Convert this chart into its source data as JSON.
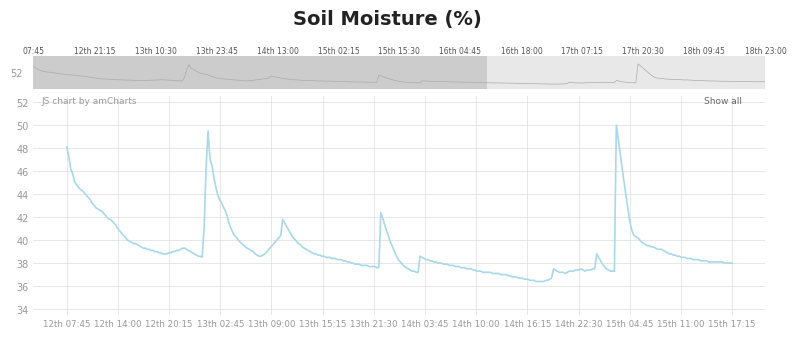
{
  "title": "Soil Moisture (%)",
  "title_fontsize": 14,
  "title_fontweight": "bold",
  "ylabel_values": [
    34,
    36,
    38,
    40,
    42,
    44,
    46,
    48,
    50,
    52
  ],
  "ylim": [
    33.5,
    52.5
  ],
  "bg_color": "#ffffff",
  "plot_bg_color": "#ffffff",
  "line_color": "#a8d8ea",
  "line_width": 1.2,
  "scrollbar_color": "#cccccc",
  "scrollbar_dark_color": "#888888",
  "x_tick_labels": [
    "12th 07:45",
    "12th 14:00",
    "12th 20:15",
    "13th 02:45",
    "13th 09:00",
    "13th 15:15",
    "13th 21:30",
    "14th 03:45",
    "14th 10:00",
    "14th 16:15",
    "14th 22:30",
    "15th 04:45",
    "15th 11:00",
    "15th 17:15"
  ],
  "top_scroll_labels": [
    "07:45",
    "12th 21:15",
    "13th 10:30",
    "13th 23:45",
    "14th 13:00",
    "15th 02:15",
    "15th 15:30",
    "16th 04:45",
    "16th 18:00",
    "17th 07:15",
    "17th 20:30",
    "18th 09:45",
    "18th 23:00"
  ],
  "watermark_text": "JS chart by amCharts",
  "show_all_text": "Show all",
  "grid_color": "#dddddd",
  "tick_color": "#999999",
  "data_y": [
    48.1,
    47.3,
    46.2,
    45.8,
    45.1,
    44.8,
    44.6,
    44.4,
    44.3,
    44.1,
    43.9,
    43.7,
    43.5,
    43.2,
    43.0,
    42.8,
    42.7,
    42.6,
    42.5,
    42.3,
    42.1,
    41.9,
    41.8,
    41.7,
    41.5,
    41.3,
    41.0,
    40.8,
    40.6,
    40.4,
    40.2,
    40.0,
    39.9,
    39.8,
    39.7,
    39.7,
    39.6,
    39.5,
    39.4,
    39.3,
    39.3,
    39.2,
    39.2,
    39.1,
    39.1,
    39.0,
    39.0,
    38.9,
    38.9,
    38.8,
    38.8,
    38.8,
    38.9,
    38.9,
    39.0,
    39.0,
    39.1,
    39.1,
    39.2,
    39.3,
    39.3,
    39.2,
    39.1,
    39.0,
    38.9,
    38.8,
    38.7,
    38.6,
    38.6,
    38.5,
    41.1,
    46.4,
    49.5,
    47.0,
    46.5,
    45.4,
    44.6,
    43.9,
    43.5,
    43.2,
    42.8,
    42.5,
    41.9,
    41.3,
    40.9,
    40.5,
    40.3,
    40.1,
    39.9,
    39.7,
    39.6,
    39.4,
    39.3,
    39.2,
    39.1,
    39.0,
    38.8,
    38.7,
    38.6,
    38.6,
    38.7,
    38.8,
    39.0,
    39.2,
    39.4,
    39.6,
    39.8,
    40.0,
    40.2,
    40.4,
    41.8,
    41.5,
    41.2,
    40.9,
    40.6,
    40.3,
    40.1,
    39.9,
    39.7,
    39.6,
    39.4,
    39.3,
    39.2,
    39.1,
    39.0,
    38.9,
    38.8,
    38.8,
    38.7,
    38.7,
    38.6,
    38.6,
    38.5,
    38.5,
    38.5,
    38.4,
    38.4,
    38.4,
    38.3,
    38.3,
    38.3,
    38.2,
    38.2,
    38.1,
    38.1,
    38.0,
    38.0,
    37.9,
    37.9,
    37.9,
    37.8,
    37.8,
    37.8,
    37.8,
    37.7,
    37.7,
    37.7,
    37.7,
    37.6,
    37.6,
    42.4,
    41.9,
    41.3,
    40.8,
    40.3,
    39.8,
    39.4,
    39.0,
    38.6,
    38.3,
    38.1,
    37.9,
    37.7,
    37.6,
    37.5,
    37.4,
    37.3,
    37.3,
    37.2,
    37.2,
    38.6,
    38.5,
    38.4,
    38.3,
    38.3,
    38.2,
    38.2,
    38.1,
    38.1,
    38.0,
    38.0,
    38.0,
    37.9,
    37.9,
    37.9,
    37.8,
    37.8,
    37.8,
    37.7,
    37.7,
    37.7,
    37.6,
    37.6,
    37.6,
    37.5,
    37.5,
    37.5,
    37.4,
    37.4,
    37.3,
    37.3,
    37.3,
    37.2,
    37.2,
    37.2,
    37.2,
    37.2,
    37.1,
    37.1,
    37.1,
    37.1,
    37.0,
    37.0,
    37.0,
    37.0,
    36.9,
    36.9,
    36.8,
    36.8,
    36.8,
    36.7,
    36.7,
    36.7,
    36.6,
    36.6,
    36.6,
    36.5,
    36.5,
    36.5,
    36.4,
    36.4,
    36.4,
    36.4,
    36.4,
    36.5,
    36.5,
    36.6,
    36.7,
    37.5,
    37.4,
    37.3,
    37.2,
    37.2,
    37.2,
    37.1,
    37.2,
    37.3,
    37.3,
    37.3,
    37.4,
    37.4,
    37.4,
    37.5,
    37.4,
    37.3,
    37.4,
    37.4,
    37.4,
    37.5,
    37.5,
    38.8,
    38.5,
    38.2,
    37.9,
    37.7,
    37.5,
    37.4,
    37.3,
    37.3,
    37.3,
    50.0,
    48.8,
    47.5,
    46.2,
    45.0,
    43.8,
    42.6,
    41.5,
    40.8,
    40.4,
    40.3,
    40.2,
    40.0,
    39.8,
    39.7,
    39.6,
    39.5,
    39.5,
    39.4,
    39.4,
    39.3,
    39.2,
    39.2,
    39.2,
    39.1,
    39.0,
    38.9,
    38.8,
    38.8,
    38.7,
    38.7,
    38.6,
    38.6,
    38.5,
    38.5,
    38.5,
    38.4,
    38.4,
    38.4,
    38.3,
    38.3,
    38.3,
    38.3,
    38.2,
    38.2,
    38.2,
    38.2,
    38.1,
    38.1,
    38.1,
    38.1,
    38.1,
    38.1,
    38.1,
    38.1,
    38.0,
    38.0,
    38.0,
    38.0,
    38.0
  ]
}
